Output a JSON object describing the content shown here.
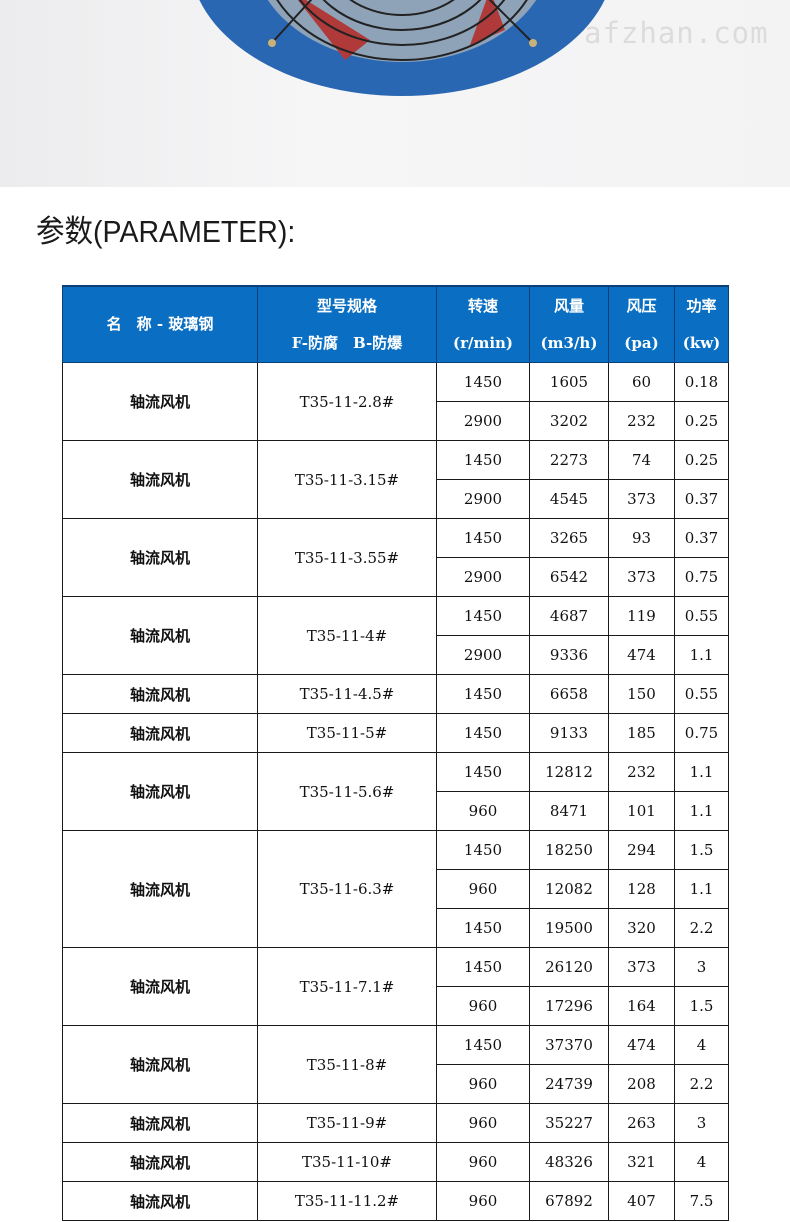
{
  "watermark": "afzhan.com",
  "section_title": "参数(PARAMETER):",
  "colors": {
    "header_bg": "#0a6fc2",
    "fan_housing": "#2a67b3",
    "blade": "#b03a3a"
  },
  "table": {
    "headers": [
      {
        "lines": [
          "名　称 - 玻璃钢"
        ]
      },
      {
        "lines": [
          "型号规格",
          "F-防腐　B-防爆"
        ]
      },
      {
        "lines": [
          "转速",
          "(r/min)"
        ]
      },
      {
        "lines": [
          "风量",
          "(m3/h)"
        ]
      },
      {
        "lines": [
          "风压",
          "(pa)"
        ]
      },
      {
        "lines": [
          "功率",
          "(kw)"
        ]
      }
    ],
    "groups": [
      {
        "name": "轴流风机",
        "model": "T35-11-2.8#",
        "rows": [
          [
            "1450",
            "1605",
            "60",
            "0.18"
          ],
          [
            "2900",
            "3202",
            "232",
            "0.25"
          ]
        ]
      },
      {
        "name": "轴流风机",
        "model": "T35-11-3.15#",
        "rows": [
          [
            "1450",
            "2273",
            "74",
            "0.25"
          ],
          [
            "2900",
            "4545",
            "373",
            "0.37"
          ]
        ]
      },
      {
        "name": "轴流风机",
        "model": "T35-11-3.55#",
        "rows": [
          [
            "1450",
            "3265",
            "93",
            "0.37"
          ],
          [
            "2900",
            "6542",
            "373",
            "0.75"
          ]
        ]
      },
      {
        "name": "轴流风机",
        "model": "T35-11-4#",
        "rows": [
          [
            "1450",
            "4687",
            "119",
            "0.55"
          ],
          [
            "2900",
            "9336",
            "474",
            "1.1"
          ]
        ]
      },
      {
        "name": "轴流风机",
        "model": "T35-11-4.5#",
        "rows": [
          [
            "1450",
            "6658",
            "150",
            "0.55"
          ]
        ]
      },
      {
        "name": "轴流风机",
        "model": "T35-11-5#",
        "rows": [
          [
            "1450",
            "9133",
            "185",
            "0.75"
          ]
        ]
      },
      {
        "name": "轴流风机",
        "model": "T35-11-5.6#",
        "rows": [
          [
            "1450",
            "12812",
            "232",
            "1.1"
          ],
          [
            "960",
            "8471",
            "101",
            "1.1"
          ]
        ]
      },
      {
        "name": "轴流风机",
        "model": "T35-11-6.3#",
        "rows": [
          [
            "1450",
            "18250",
            "294",
            "1.5"
          ],
          [
            "960",
            "12082",
            "128",
            "1.1"
          ],
          [
            "1450",
            "19500",
            "320",
            "2.2"
          ]
        ]
      },
      {
        "name": "轴流风机",
        "model": "T35-11-7.1#",
        "rows": [
          [
            "1450",
            "26120",
            "373",
            "3"
          ],
          [
            "960",
            "17296",
            "164",
            "1.5"
          ]
        ]
      },
      {
        "name": "轴流风机",
        "model": "T35-11-8#",
        "rows": [
          [
            "1450",
            "37370",
            "474",
            "4"
          ],
          [
            "960",
            "24739",
            "208",
            "2.2"
          ]
        ]
      },
      {
        "name": "轴流风机",
        "model": "T35-11-9#",
        "rows": [
          [
            "960",
            "35227",
            "263",
            "3"
          ]
        ]
      },
      {
        "name": "轴流风机",
        "model": "T35-11-10#",
        "rows": [
          [
            "960",
            "48326",
            "321",
            "4"
          ]
        ]
      },
      {
        "name": "轴流风机",
        "model": "T35-11-11.2#",
        "rows": [
          [
            "960",
            "67892",
            "407",
            "7.5"
          ]
        ]
      }
    ]
  }
}
